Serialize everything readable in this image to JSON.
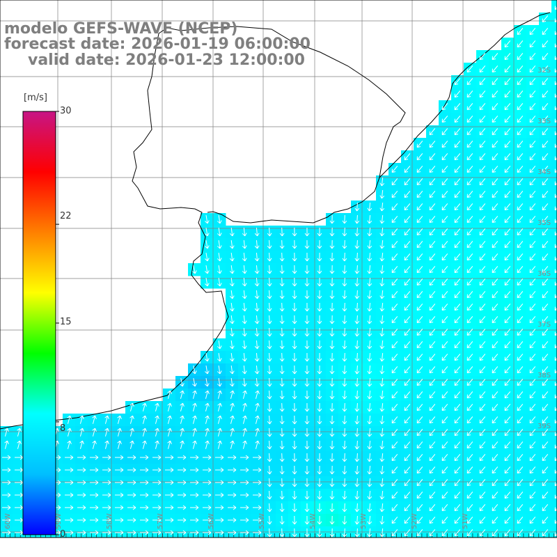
{
  "title": {
    "line1": "modelo GEFS-WAVE (NCEP)",
    "line2": "forecast date: 2026-01-19 06:00:00",
    "line3": "valid date: 2026-01-23 12:00:00"
  },
  "colorbar": {
    "unit": "[m/s]",
    "ticks": [
      "30",
      "22",
      "15",
      "8",
      "0"
    ],
    "tick_values": [
      30,
      22,
      15,
      8,
      0
    ],
    "min": 0,
    "max": 30,
    "stops": [
      "#0000ff",
      "#00bfff",
      "#00ffff",
      "#00ff00",
      "#ffff00",
      "#ff8000",
      "#ff0000",
      "#c71585"
    ]
  },
  "map": {
    "lat_labels": [
      "32S",
      "33S",
      "34S",
      "35S",
      "36S",
      "37S",
      "38S",
      "39S"
    ],
    "lon_labels": [
      "60W",
      "59W",
      "58W",
      "57W",
      "56W",
      "55W",
      "54W",
      "53W",
      "52W",
      "51W"
    ],
    "wind_range_m_s": [
      4,
      10
    ],
    "colors": {
      "land": "#ffffff",
      "grid": "#7f7f7f",
      "coast": "#000000",
      "arrow": "#ffffff"
    }
  }
}
